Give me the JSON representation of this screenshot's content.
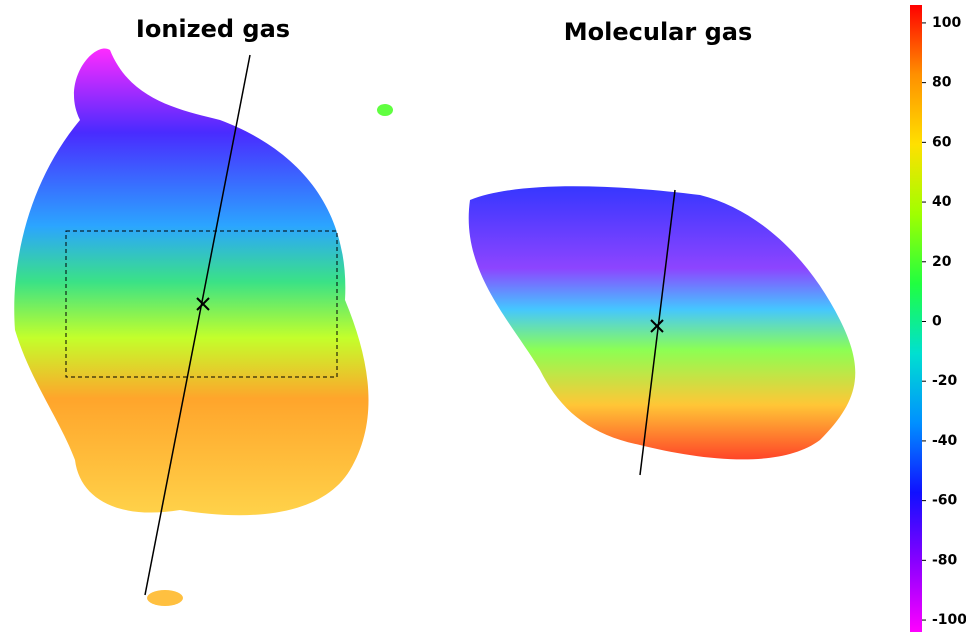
{
  "chart_data": {
    "type": "velocity-map",
    "panels": [
      {
        "title": "Ionized gas"
      },
      {
        "title": "Molecular gas"
      }
    ],
    "colorbar": {
      "lim": [
        -104,
        106
      ],
      "ticks": [
        -100,
        -80,
        -60,
        -40,
        -20,
        0,
        20,
        40,
        60,
        80,
        100
      ],
      "colormap": [
        "#ff00ff",
        "#8a00ff",
        "#1010ff",
        "#0090ff",
        "#00e0d0",
        "#20ff40",
        "#a0ff00",
        "#ffe000",
        "#ff9000",
        "#ff0000"
      ]
    }
  }
}
